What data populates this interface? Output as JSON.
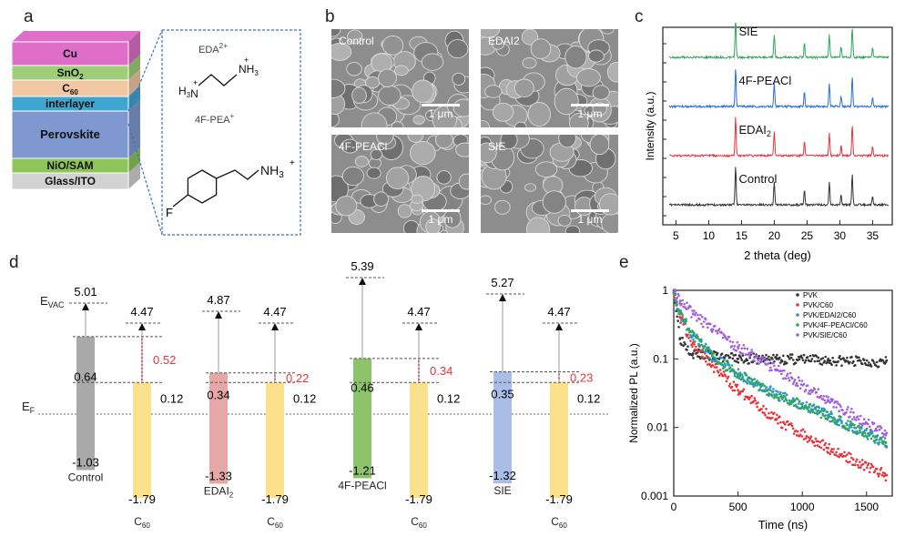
{
  "panels": {
    "a": "a",
    "b": "b",
    "c": "c",
    "d": "d",
    "e": "e"
  },
  "panel_a": {
    "layers": [
      "Cu",
      "SnO2",
      "C60",
      "interlayer",
      "Perovskite",
      "NiO/SAM",
      "Glass/ITO"
    ],
    "layer_colors": [
      "#de6ec8",
      "#9ecf78",
      "#f2c7a4",
      "#3fa7cf",
      "#7f98cf",
      "#8ec55a",
      "#d2d2d2"
    ],
    "molecule_1": "EDA2+",
    "molecule_2": "4F-PEA+",
    "nh3": "NH3",
    "h3n": "H3N",
    "fluorine": "F",
    "plus": "+"
  },
  "panel_b": {
    "images": [
      "Control",
      "EDAI2",
      "4F-PEACl",
      "SIE"
    ],
    "scale_bar": "1 μm"
  },
  "panel_c": {
    "ylabel": "Intensity (a.u.)",
    "xlabel": "2 theta (deg)",
    "xticks": [
      5,
      10,
      15,
      20,
      25,
      30,
      35
    ],
    "traces": [
      {
        "name": "Control",
        "color": "#333333"
      },
      {
        "name": "EDAI2",
        "color": "#e8343a"
      },
      {
        "name": "4F-PEACl",
        "color": "#2e6fd6"
      },
      {
        "name": "SIE",
        "color": "#2fa85a"
      }
    ],
    "peaks_deg": [
      14.1,
      20.0,
      24.6,
      28.4,
      30.2,
      31.9,
      35.0
    ],
    "peak_heights": [
      0.92,
      0.55,
      0.35,
      0.55,
      0.25,
      0.72,
      0.22
    ]
  },
  "panel_d": {
    "evac": "E",
    "evac_sub": "VAC",
    "ef": "E",
    "ef_sub": "F",
    "groups": [
      {
        "name": "Control",
        "color": "#a9a9a9",
        "top": 5.01,
        "mid": 0.64,
        "bottom": -1.03,
        "diff": 0.52
      },
      {
        "name": "EDAI2",
        "color": "#e6a8a6",
        "top": 4.87,
        "mid": 0.34,
        "bottom": -1.33,
        "diff": 0.22
      },
      {
        "name": "4F-PEACl",
        "color": "#8cc36b",
        "top": 5.39,
        "mid": 0.46,
        "bottom": -1.21,
        "diff": 0.34
      },
      {
        "name": "SIE",
        "color": "#a9bde6",
        "top": 5.27,
        "mid": 0.35,
        "bottom": -1.32,
        "diff": 0.23
      }
    ],
    "c60": {
      "name": "C60",
      "color": "#fbe18c",
      "top": 4.47,
      "mid": 0.12,
      "bottom": -1.79
    }
  },
  "chart_data": {
    "type": "scatter",
    "title": "",
    "xlabel": "Time (ns)",
    "ylabel": "Normalized PL (a.u.)",
    "xlim": [
      0,
      1700
    ],
    "ylim": [
      0.001,
      1
    ],
    "yscale": "log",
    "xticks": [
      0,
      500,
      1000,
      1500
    ],
    "yticks": [
      0.001,
      0.01,
      0.1,
      1
    ],
    "legend_position": "top-right",
    "series": [
      {
        "name": "PVK",
        "color": "#333333",
        "x": [
          0,
          50,
          150,
          300,
          500,
          800,
          1200,
          1650
        ],
        "y": [
          1,
          0.2,
          0.12,
          0.11,
          0.1,
          0.1,
          0.095,
          0.09
        ]
      },
      {
        "name": "PVK/C60",
        "color": "#e8343a",
        "x": [
          0,
          50,
          150,
          300,
          500,
          800,
          1200,
          1650
        ],
        "y": [
          0.9,
          0.4,
          0.17,
          0.08,
          0.035,
          0.013,
          0.005,
          0.002
        ]
      },
      {
        "name": "PVK/EDAI2/C60",
        "color": "#2e8fe0",
        "x": [
          0,
          50,
          150,
          300,
          500,
          800,
          1200,
          1650
        ],
        "y": [
          0.9,
          0.45,
          0.22,
          0.11,
          0.06,
          0.03,
          0.015,
          0.006
        ]
      },
      {
        "name": "PVK/4F-PEACl/C60",
        "color": "#2fa85a",
        "x": [
          0,
          50,
          150,
          300,
          500,
          800,
          1200,
          1650
        ],
        "y": [
          0.9,
          0.45,
          0.22,
          0.11,
          0.06,
          0.03,
          0.015,
          0.006
        ]
      },
      {
        "name": "PVK/SIE/C60",
        "color": "#a15fe0",
        "x": [
          0,
          50,
          150,
          300,
          500,
          800,
          1200,
          1650
        ],
        "y": [
          0.95,
          0.7,
          0.45,
          0.27,
          0.15,
          0.07,
          0.025,
          0.008
        ]
      }
    ]
  }
}
